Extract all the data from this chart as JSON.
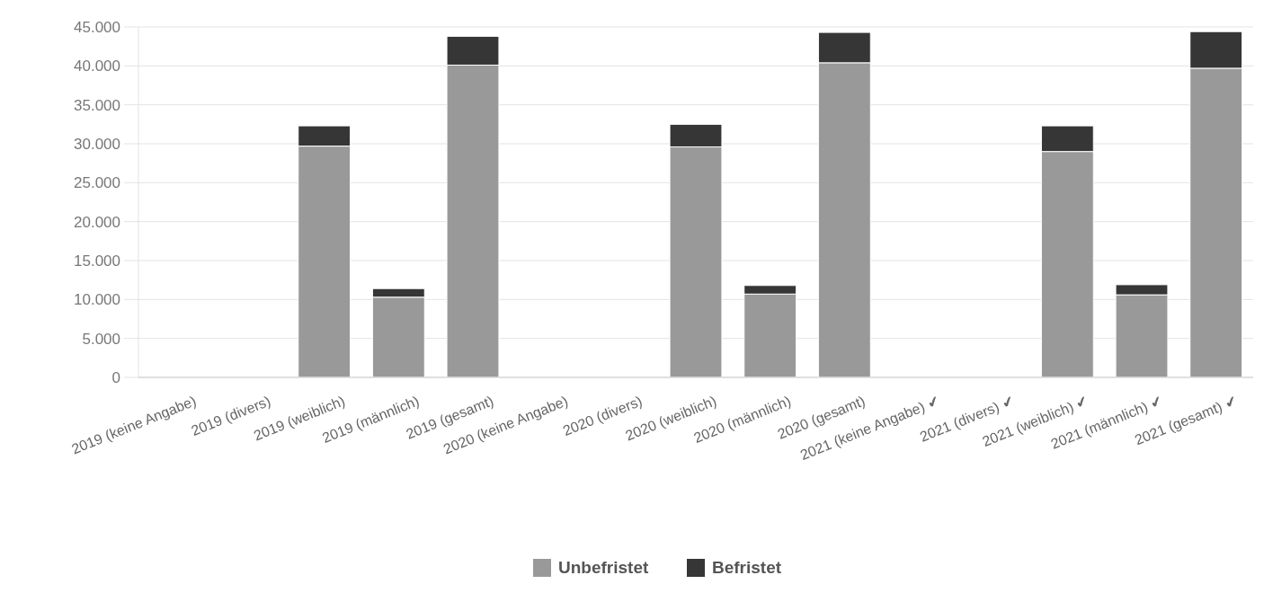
{
  "chart_data": {
    "type": "bar",
    "stacked": true,
    "categories": [
      "2019 (keine Angabe)",
      "2019 (divers)",
      "2019 (weiblich)",
      "2019 (männlich)",
      "2019 (gesamt)",
      "2020 (keine Angabe)",
      "2020 (divers)",
      "2020 (weiblich)",
      "2020 (männlich)",
      "2020 (gesamt)",
      "2021 (keine Angabe) ✔",
      "2021 (divers) ✔",
      "2021 (weiblich) ✔",
      "2021 (männlich) ✔",
      "2021 (gesamt) ✔"
    ],
    "series": [
      {
        "name": "Unbefristet",
        "color": "#999999",
        "values": [
          null,
          null,
          29700,
          10300,
          40100,
          null,
          null,
          29600,
          10700,
          40400,
          null,
          null,
          29000,
          10600,
          39700
        ]
      },
      {
        "name": "Befristet",
        "color": "#363636",
        "values": [
          null,
          null,
          2600,
          1100,
          3700,
          null,
          null,
          2900,
          1100,
          3900,
          null,
          null,
          3300,
          1300,
          4700
        ]
      }
    ],
    "ylim": [
      0,
      45000
    ],
    "yticks": [
      0,
      {
        "value": 5000,
        "label": "5.000"
      },
      {
        "value": 10000,
        "label": "10.000"
      },
      {
        "value": 15000,
        "label": "15.000"
      },
      {
        "value": 20000,
        "label": "20.000"
      },
      {
        "value": 25000,
        "label": "25.000"
      },
      {
        "value": 30000,
        "label": "30.000"
      },
      {
        "value": 35000,
        "label": "35.000"
      },
      {
        "value": 40000,
        "label": "40.000"
      },
      {
        "value": 45000,
        "label": "45.000"
      }
    ],
    "grid": "y",
    "legend": "bottom"
  }
}
